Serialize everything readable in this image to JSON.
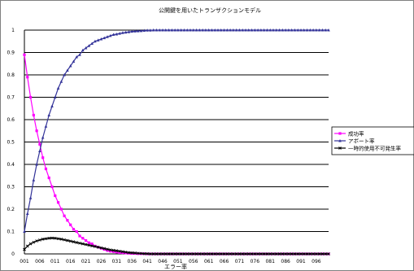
{
  "chart_data": {
    "type": "line",
    "title": "公開鍵を用いたトランザクションモデル",
    "xlabel": "エラー率",
    "ylabel": "",
    "ylim": [
      0,
      1
    ],
    "yticks": [
      "0",
      "0.1",
      "0.2",
      "0.3",
      "0.4",
      "0.5",
      "0.6",
      "0.7",
      "0.8",
      "0.9",
      "1"
    ],
    "xtick_labels": [
      "001",
      "006",
      "011",
      "016",
      "021",
      "026",
      "031",
      "036",
      "041",
      "046",
      "051",
      "056",
      "061",
      "066",
      "071",
      "076",
      "081",
      "086",
      "091",
      "096"
    ],
    "x": [
      1,
      2,
      3,
      4,
      5,
      6,
      7,
      8,
      9,
      10,
      11,
      12,
      13,
      14,
      15,
      16,
      17,
      18,
      19,
      20,
      21,
      22,
      23,
      24,
      25,
      26,
      27,
      28,
      29,
      30,
      31,
      32,
      33,
      34,
      35,
      36,
      37,
      38,
      39,
      40,
      41,
      42,
      43,
      44,
      45,
      46,
      47,
      48,
      49,
      50,
      51,
      52,
      53,
      54,
      55,
      56,
      57,
      58,
      59,
      60,
      61,
      62,
      63,
      64,
      65,
      66,
      67,
      68,
      69,
      70,
      71,
      72,
      73,
      74,
      75,
      76,
      77,
      78,
      79,
      80,
      81,
      82,
      83,
      84,
      85,
      86,
      87,
      88,
      89,
      90,
      91,
      92,
      93,
      94,
      95,
      96,
      97,
      98,
      99,
      100
    ],
    "grid": true,
    "legend_position": "right",
    "series": [
      {
        "name": "成功率",
        "color": "#ff00ff",
        "marker": "square",
        "values": [
          0.89,
          0.79,
          0.7,
          0.62,
          0.55,
          0.49,
          0.43,
          0.38,
          0.34,
          0.3,
          0.26,
          0.23,
          0.2,
          0.17,
          0.15,
          0.13,
          0.11,
          0.1,
          0.08,
          0.07,
          0.06,
          0.05,
          0.045,
          0.035,
          0.03,
          0.025,
          0.02,
          0.015,
          0.012,
          0.01,
          0.008,
          0.006,
          0.005,
          0.004,
          0.003,
          0.002,
          0.002,
          0.001,
          0.001,
          0.001,
          0,
          0,
          0,
          0,
          0,
          0,
          0,
          0,
          0,
          0,
          0,
          0,
          0,
          0,
          0,
          0,
          0,
          0,
          0,
          0,
          0,
          0,
          0,
          0,
          0,
          0,
          0,
          0,
          0,
          0,
          0,
          0,
          0,
          0,
          0,
          0,
          0,
          0,
          0,
          0,
          0,
          0,
          0,
          0,
          0,
          0,
          0,
          0,
          0,
          0,
          0,
          0,
          0,
          0,
          0,
          0,
          0,
          0,
          0,
          0
        ]
      },
      {
        "name": "アボート率",
        "color": "#333399",
        "marker": "triangle",
        "values": [
          0.1,
          0.18,
          0.25,
          0.33,
          0.4,
          0.46,
          0.52,
          0.57,
          0.62,
          0.66,
          0.7,
          0.74,
          0.77,
          0.8,
          0.82,
          0.84,
          0.86,
          0.88,
          0.89,
          0.91,
          0.92,
          0.93,
          0.94,
          0.95,
          0.955,
          0.96,
          0.965,
          0.97,
          0.975,
          0.98,
          0.982,
          0.985,
          0.988,
          0.99,
          0.992,
          0.994,
          0.995,
          0.996,
          0.997,
          0.998,
          0.999,
          0.999,
          1,
          1,
          1,
          1,
          1,
          1,
          1,
          1,
          1,
          1,
          1,
          1,
          1,
          1,
          1,
          1,
          1,
          1,
          1,
          1,
          1,
          1,
          1,
          1,
          1,
          1,
          1,
          1,
          1,
          1,
          1,
          1,
          1,
          1,
          1,
          1,
          1,
          1,
          1,
          1,
          1,
          1,
          1,
          1,
          1,
          1,
          1,
          1,
          1,
          1,
          1,
          1,
          1,
          1,
          1,
          1,
          1,
          1
        ]
      },
      {
        "name": "一時的使用不可発生率",
        "color": "#000000",
        "marker": "x",
        "values": [
          0.02,
          0.035,
          0.045,
          0.052,
          0.058,
          0.062,
          0.066,
          0.068,
          0.07,
          0.071,
          0.07,
          0.068,
          0.066,
          0.063,
          0.06,
          0.057,
          0.054,
          0.051,
          0.048,
          0.045,
          0.042,
          0.039,
          0.036,
          0.033,
          0.03,
          0.027,
          0.024,
          0.021,
          0.018,
          0.016,
          0.014,
          0.012,
          0.01,
          0.008,
          0.006,
          0.005,
          0.004,
          0.003,
          0.002,
          0.001,
          0.001,
          0,
          0,
          0,
          0,
          0,
          0,
          0,
          0,
          0,
          0,
          0,
          0,
          0,
          0,
          0,
          0,
          0,
          0,
          0,
          0,
          0,
          0,
          0,
          0,
          0,
          0,
          0,
          0,
          0,
          0,
          0,
          0,
          0,
          0,
          0,
          0,
          0,
          0,
          0,
          0,
          0,
          0,
          0,
          0,
          0,
          0,
          0,
          0,
          0,
          0,
          0,
          0,
          0,
          0,
          0,
          0,
          0,
          0,
          0
        ]
      }
    ]
  }
}
